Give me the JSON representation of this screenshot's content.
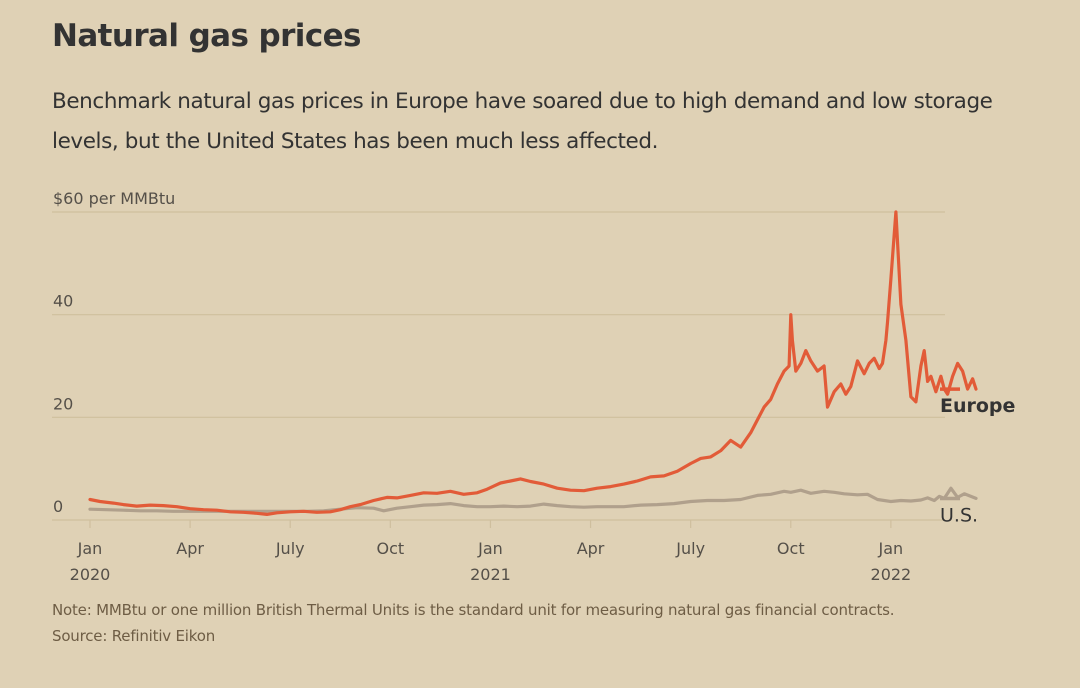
{
  "header": {
    "title": "Natural gas prices",
    "subtitle": "Benchmark natural gas prices in Europe have soared due to high demand and low storage levels, but the United States has been much less affected."
  },
  "footer": {
    "note": "Note: MMBtu or one million British Thermal Units is the standard unit for measuring natural gas financial contracts.",
    "source": "Source: Refinitiv Eikon"
  },
  "colors": {
    "background": "#dfd1b5",
    "europe": "#e25b38",
    "us": "#b0a08c",
    "grid": "#cfbf9e",
    "overlap": "#9e3a24"
  },
  "chart_data": {
    "type": "line",
    "title": "Natural gas prices",
    "xlabel": "",
    "ylabel": "$ per MMBtu",
    "y_unit_label": "$60 per MMBtu",
    "ylim": [
      0,
      60
    ],
    "xlim_months_since_jan2020": [
      0,
      27
    ],
    "grid": true,
    "yticks": [
      {
        "value": 0,
        "label": "0"
      },
      {
        "value": 20,
        "label": "20"
      },
      {
        "value": 40,
        "label": "40"
      },
      {
        "value": 60,
        "label": "$60 per MMBtu"
      }
    ],
    "xticks": [
      {
        "month": 0,
        "label": "Jan",
        "sublabel": "2020"
      },
      {
        "month": 3,
        "label": "Apr",
        "sublabel": ""
      },
      {
        "month": 6,
        "label": "July",
        "sublabel": ""
      },
      {
        "month": 9,
        "label": "Oct",
        "sublabel": ""
      },
      {
        "month": 12,
        "label": "Jan",
        "sublabel": "2021"
      },
      {
        "month": 15,
        "label": "Apr",
        "sublabel": ""
      },
      {
        "month": 18,
        "label": "July",
        "sublabel": ""
      },
      {
        "month": 21,
        "label": "Oct",
        "sublabel": ""
      },
      {
        "month": 24,
        "label": "Jan",
        "sublabel": "2022"
      }
    ],
    "legend_placement": "right, at line ends",
    "series": [
      {
        "name": "Europe",
        "label": "Europe",
        "x_months": [
          0,
          0.3,
          0.7,
          1.0,
          1.4,
          1.8,
          2.2,
          2.6,
          3.0,
          3.4,
          3.8,
          4.2,
          4.6,
          5.0,
          5.3,
          5.6,
          6.0,
          6.4,
          6.8,
          7.2,
          7.5,
          7.8,
          8.1,
          8.5,
          8.9,
          9.2,
          9.6,
          10.0,
          10.4,
          10.8,
          11.2,
          11.6,
          11.9,
          12.1,
          12.3,
          12.6,
          12.9,
          13.2,
          13.6,
          14.0,
          14.4,
          14.8,
          15.2,
          15.6,
          16.0,
          16.4,
          16.8,
          17.2,
          17.6,
          18.0,
          18.3,
          18.6,
          18.9,
          19.2,
          19.5,
          19.8,
          20.0,
          20.2,
          20.4,
          20.6,
          20.8,
          20.95,
          21.0,
          21.05,
          21.15,
          21.3,
          21.45,
          21.6,
          21.8,
          22.0,
          22.1,
          22.3,
          22.5,
          22.65,
          22.8,
          23.0,
          23.2,
          23.35,
          23.5,
          23.65,
          23.75,
          23.85,
          23.9,
          24.0,
          24.15,
          24.3,
          24.45,
          24.6,
          24.75,
          24.9,
          25.0,
          25.1,
          25.2,
          25.35,
          25.5,
          25.6,
          25.7,
          25.85,
          26.0,
          26.15,
          26.3,
          26.45,
          26.55
        ],
        "y": [
          4.0,
          3.6,
          3.3,
          3.0,
          2.7,
          2.9,
          2.8,
          2.6,
          2.2,
          2.0,
          1.9,
          1.6,
          1.5,
          1.3,
          1.1,
          1.4,
          1.6,
          1.7,
          1.5,
          1.6,
          2.0,
          2.6,
          3.0,
          3.8,
          4.4,
          4.3,
          4.8,
          5.3,
          5.2,
          5.6,
          5.0,
          5.3,
          6.0,
          6.6,
          7.2,
          7.6,
          8.0,
          7.5,
          7.0,
          6.2,
          5.8,
          5.7,
          6.2,
          6.5,
          7.0,
          7.6,
          8.4,
          8.6,
          9.5,
          11.0,
          12.0,
          12.3,
          13.5,
          15.5,
          14.2,
          17.0,
          19.5,
          22.0,
          23.5,
          26.5,
          29.0,
          30.0,
          40.0,
          35.0,
          29.0,
          30.5,
          33.0,
          31.0,
          29.0,
          30.0,
          22.0,
          25.0,
          26.5,
          24.5,
          26.0,
          31.0,
          28.5,
          30.5,
          31.5,
          29.5,
          30.5,
          35.0,
          38.5,
          47.0,
          60.0,
          42.0,
          35.0,
          24.0,
          23.0,
          30.0,
          33.0,
          27.0,
          28.0,
          25.0,
          28.0,
          25.5,
          24.5,
          28.0,
          30.5,
          29.0,
          25.5,
          27.5,
          25.5
        ]
      },
      {
        "name": "U.S.",
        "label": "U.S.",
        "x_months": [
          0,
          0.5,
          1.0,
          1.5,
          2.0,
          2.5,
          3.0,
          3.5,
          4.0,
          4.5,
          5.0,
          5.5,
          6.0,
          6.5,
          7.0,
          7.5,
          8.0,
          8.5,
          8.8,
          9.2,
          9.6,
          10.0,
          10.4,
          10.8,
          11.2,
          11.6,
          12.0,
          12.4,
          12.8,
          13.2,
          13.6,
          14.0,
          14.4,
          14.8,
          15.2,
          15.6,
          16.0,
          16.5,
          17.0,
          17.5,
          18.0,
          18.5,
          19.0,
          19.5,
          20.0,
          20.4,
          20.8,
          21.0,
          21.3,
          21.6,
          22.0,
          22.3,
          22.6,
          23.0,
          23.3,
          23.6,
          24.0,
          24.3,
          24.6,
          24.9,
          25.1,
          25.3,
          25.45,
          25.6,
          25.8,
          26.0,
          26.2,
          26.55
        ],
        "y": [
          2.1,
          2.0,
          1.9,
          1.8,
          1.8,
          1.7,
          1.7,
          1.7,
          1.7,
          1.7,
          1.7,
          1.7,
          1.7,
          1.7,
          1.8,
          2.1,
          2.4,
          2.3,
          1.8,
          2.3,
          2.6,
          2.9,
          3.0,
          3.2,
          2.8,
          2.6,
          2.6,
          2.7,
          2.6,
          2.7,
          3.1,
          2.8,
          2.6,
          2.5,
          2.6,
          2.6,
          2.6,
          2.9,
          3.0,
          3.2,
          3.6,
          3.8,
          3.8,
          4.0,
          4.8,
          5.0,
          5.6,
          5.4,
          5.8,
          5.2,
          5.6,
          5.4,
          5.1,
          4.9,
          5.0,
          4.0,
          3.6,
          3.8,
          3.7,
          3.9,
          4.3,
          3.8,
          4.6,
          4.2,
          6.2,
          4.4,
          5.1,
          4.2
        ]
      }
    ]
  }
}
